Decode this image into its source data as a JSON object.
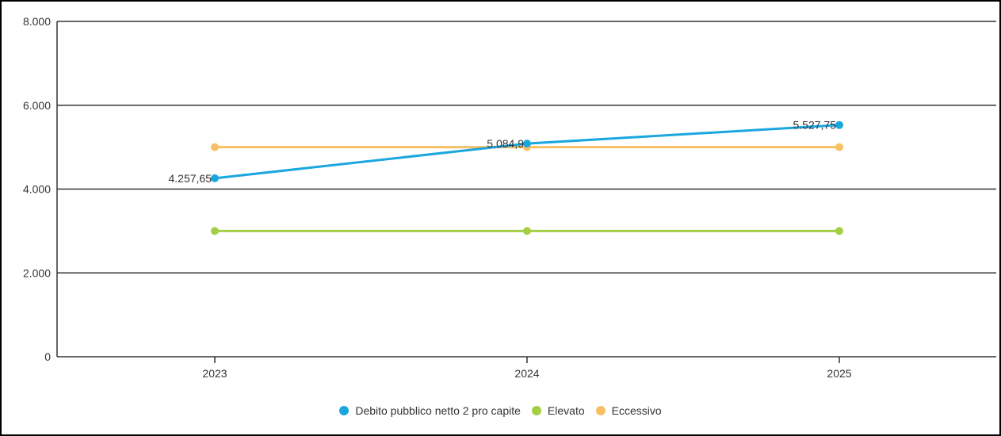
{
  "chart_data": {
    "type": "line",
    "title": "",
    "xlabel": "",
    "ylabel": "",
    "categories": [
      "2023",
      "2024",
      "2025"
    ],
    "ylim": [
      0,
      8000
    ],
    "y_ticks": [
      0,
      2000,
      4000,
      6000,
      8000
    ],
    "y_tick_labels": [
      "0",
      "2.000",
      "4.000",
      "6.000",
      "8.000"
    ],
    "grid": true,
    "legend_position": "bottom",
    "series": [
      {
        "name": "Debito pubblico netto 2 pro capite",
        "values": [
          4257.65,
          5084.9,
          5527.75
        ],
        "data_labels": [
          "4.257,65",
          "5.084,9",
          "5.527,75"
        ],
        "color": "#1aa7e0"
      },
      {
        "name": "Elevato",
        "values": [
          3000,
          3000,
          3000
        ],
        "color": "#a4cf45"
      },
      {
        "name": "Eccessivo",
        "values": [
          5000,
          5000,
          5000
        ],
        "color": "#f7c064"
      }
    ]
  }
}
